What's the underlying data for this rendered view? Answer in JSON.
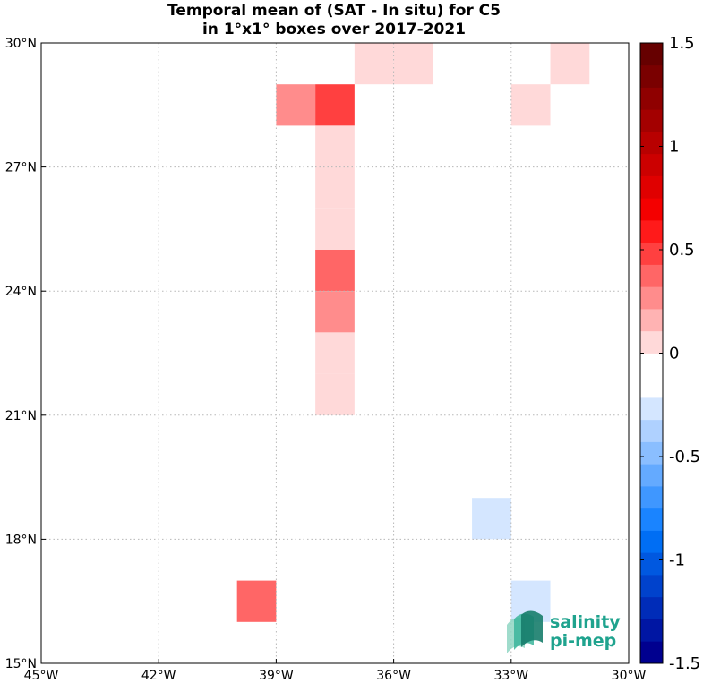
{
  "title": {
    "line1": "Temporal mean of (SAT - In situ) for C5",
    "line2": "in 1°x1° boxes over 2017-2021"
  },
  "x_ticks": [
    {
      "lon": -45,
      "label": "45°W"
    },
    {
      "lon": -42,
      "label": "42°W"
    },
    {
      "lon": -39,
      "label": "39°W"
    },
    {
      "lon": -36,
      "label": "36°W"
    },
    {
      "lon": -33,
      "label": "33°W"
    },
    {
      "lon": -30,
      "label": "30°W"
    }
  ],
  "y_ticks": [
    {
      "lat": 30,
      "label": "30°N"
    },
    {
      "lat": 27,
      "label": "27°N"
    },
    {
      "lat": 24,
      "label": "24°N"
    },
    {
      "lat": 21,
      "label": "21°N"
    },
    {
      "lat": 18,
      "label": "18°N"
    },
    {
      "lat": 15,
      "label": "15°N"
    }
  ],
  "map": {
    "lon_range": [
      -45,
      -30
    ],
    "lat_range": [
      15,
      30
    ],
    "grid": true
  },
  "chart_data": {
    "type": "heatmap",
    "cell_size_deg": 1,
    "cells": [
      {
        "lon": -40,
        "lat": 29,
        "value": -0.1
      },
      {
        "lon": -37,
        "lat": 29,
        "value": 0.1
      },
      {
        "lon": -36,
        "lat": 29,
        "value": 0.1
      },
      {
        "lon": -32,
        "lat": 29,
        "value": 0.1
      },
      {
        "lon": -39,
        "lat": 28,
        "value": 0.25
      },
      {
        "lon": -38,
        "lat": 28,
        "value": 0.45
      },
      {
        "lon": -33,
        "lat": 28,
        "value": 0.1
      },
      {
        "lon": -38,
        "lat": 27,
        "value": 0.1
      },
      {
        "lon": -38,
        "lat": 26,
        "value": 0.1
      },
      {
        "lon": -38,
        "lat": 25,
        "value": 0.1
      },
      {
        "lon": -38,
        "lat": 24,
        "value": 0.35
      },
      {
        "lon": -38,
        "lat": 23,
        "value": 0.25
      },
      {
        "lon": -38,
        "lat": 22,
        "value": 0.1
      },
      {
        "lon": -34,
        "lat": 22,
        "value": -0.1
      },
      {
        "lon": -39,
        "lat": 21,
        "value": -0.15
      },
      {
        "lon": -38,
        "lat": 21,
        "value": 0.1
      },
      {
        "lon": -34,
        "lat": 18,
        "value": -0.25
      },
      {
        "lon": -34,
        "lat": 17,
        "value": -0.1
      },
      {
        "lon": -40,
        "lat": 16,
        "value": 0.35
      },
      {
        "lon": -33,
        "lat": 16,
        "value": -0.25
      },
      {
        "lon": -38,
        "lat": 15,
        "value": -0.1
      }
    ],
    "colorbar": {
      "range": [
        -1.5,
        1.5
      ],
      "ticks": [
        {
          "value": 1.5,
          "label": "1.5"
        },
        {
          "value": 1.0,
          "label": "1"
        },
        {
          "value": 0.5,
          "label": "0.5"
        },
        {
          "value": 0.0,
          "label": "0"
        },
        {
          "value": -0.5,
          "label": "-0.5"
        },
        {
          "value": -1.0,
          "label": "-1"
        },
        {
          "value": -1.5,
          "label": "-1.5"
        }
      ],
      "colors": [
        "#00008f",
        "#0016a3",
        "#002cb8",
        "#0042cc",
        "#0058e0",
        "#006ef4",
        "#1a84ff",
        "#3f97ff",
        "#64aaff",
        "#8abeff",
        "#afd1ff",
        "#d4e6ff",
        "#ffffff",
        "#ffffff",
        "#ffd9d9",
        "#ffb3b3",
        "#ff8c8c",
        "#ff6666",
        "#ff4040",
        "#ff1a1a",
        "#f40000",
        "#e00000",
        "#cc0000",
        "#b80000",
        "#a30000",
        "#8f0000",
        "#7a0000",
        "#660000"
      ]
    }
  },
  "logo": {
    "line1": "salinity",
    "line2": "pi-mep"
  }
}
